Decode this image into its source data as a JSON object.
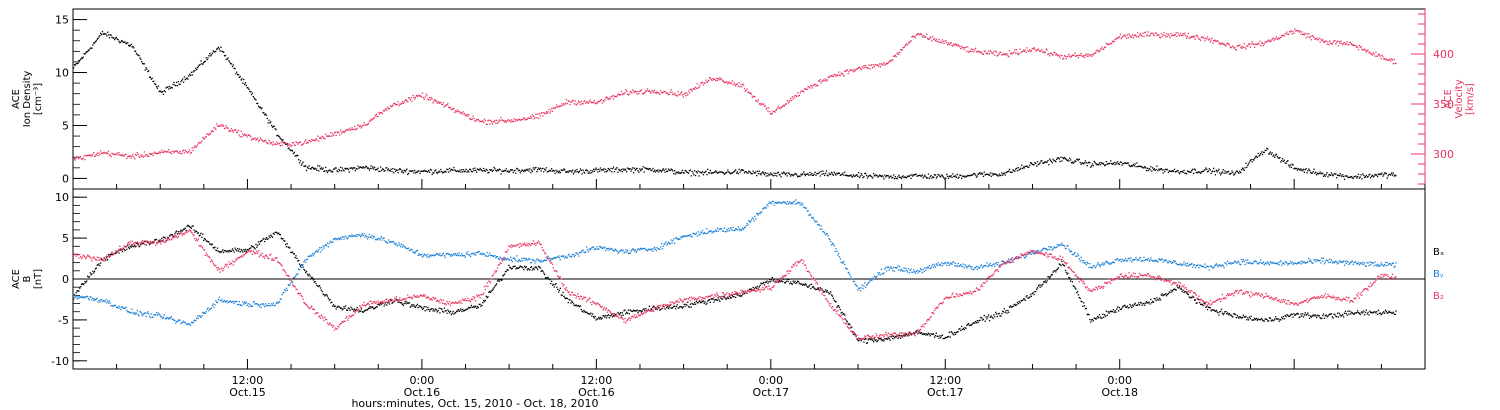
{
  "colors": {
    "black": "#000000",
    "pink": "#e8345f",
    "blue": "#1a7fd6"
  },
  "chart_data": [
    {
      "type": "scatter",
      "panel": "top",
      "ylabel_left": [
        "ACE",
        "Ion Density",
        "[cm⁻³]"
      ],
      "ylabel_right": [
        "ACE",
        "Velocity",
        "[km/s]"
      ],
      "xlim_hours": [
        0,
        93
      ],
      "ylim": [
        -1,
        16
      ],
      "yticks": [
        0,
        5,
        10,
        15
      ],
      "ylim_right": [
        265,
        445
      ],
      "yticks_right": [
        300,
        350,
        400
      ],
      "grid": false,
      "series": [
        {
          "axis": "left",
          "color": "#000000",
          "x": [
            0,
            2,
            4,
            6,
            8,
            10,
            12,
            14,
            16,
            18,
            20,
            22,
            24,
            26,
            28,
            30,
            32,
            34,
            36,
            38,
            40,
            42,
            44,
            46,
            48,
            50,
            52,
            54,
            56,
            58,
            60,
            62,
            64,
            66,
            68,
            70,
            72,
            74,
            76,
            78,
            80,
            82,
            84,
            86,
            88,
            90,
            91
          ],
          "y": [
            10.5,
            13.8,
            12.6,
            8.1,
            9.8,
            12.5,
            8.5,
            4.3,
            1.1,
            0.8,
            1.1,
            0.8,
            0.7,
            0.8,
            0.8,
            0.8,
            0.9,
            0.7,
            0.8,
            0.9,
            0.9,
            0.6,
            0.6,
            0.7,
            0.4,
            0.4,
            0.5,
            0.3,
            0.2,
            0.3,
            0.2,
            0.4,
            0.5,
            1.4,
            1.9,
            1.4,
            1.5,
            1.0,
            0.7,
            0.8,
            0.5,
            2.8,
            1.0,
            0.5,
            0.2,
            0.4,
            0.4
          ]
        },
        {
          "axis": "right",
          "color": "#e8345f",
          "x": [
            0,
            2,
            4,
            6,
            8,
            10,
            12,
            14,
            16,
            18,
            20,
            22,
            24,
            26,
            28,
            30,
            32,
            34,
            36,
            38,
            40,
            42,
            44,
            46,
            48,
            50,
            52,
            54,
            56,
            58,
            60,
            62,
            64,
            66,
            68,
            70,
            72,
            74,
            76,
            78,
            80,
            82,
            84,
            86,
            88,
            90,
            91
          ],
          "y": [
            295,
            302,
            298,
            302,
            303,
            330,
            318,
            310,
            312,
            321,
            330,
            350,
            359,
            346,
            333,
            334,
            338,
            353,
            352,
            362,
            364,
            360,
            377,
            369,
            341,
            362,
            378,
            386,
            391,
            420,
            412,
            403,
            400,
            406,
            398,
            399,
            418,
            420,
            420,
            416,
            407,
            412,
            424,
            413,
            410,
            397,
            392
          ]
        }
      ]
    },
    {
      "type": "scatter",
      "panel": "bottom",
      "ylabel_left": [
        "ACE",
        "B",
        "[nT]"
      ],
      "xlim_hours": [
        0,
        93
      ],
      "ylim": [
        -11,
        11
      ],
      "yticks": [
        -10,
        -5,
        0,
        5,
        10
      ],
      "zero_line": true,
      "grid": false,
      "legend": "right",
      "series": [
        {
          "name": "Bₓ",
          "color": "#000000",
          "x": [
            0,
            2,
            4,
            6,
            8,
            10,
            12,
            14,
            16,
            18,
            20,
            22,
            24,
            26,
            28,
            30,
            32,
            34,
            36,
            38,
            40,
            42,
            44,
            46,
            48,
            50,
            52,
            54,
            56,
            58,
            60,
            62,
            64,
            66,
            68,
            70,
            72,
            74,
            76,
            78,
            80,
            82,
            84,
            86,
            88,
            90,
            91
          ],
          "y": [
            -2,
            2.5,
            4.1,
            4.8,
            6.5,
            3.5,
            3.6,
            5.8,
            1.0,
            -3.3,
            -3.8,
            -2.5,
            -3.5,
            -4.0,
            -3.2,
            1.6,
            1.4,
            -2.5,
            -4.8,
            -4.0,
            -3.5,
            -3.2,
            -2.5,
            -1.8,
            0.0,
            -0.5,
            -1.5,
            -7.5,
            -7.2,
            -6.5,
            -7.0,
            -5.2,
            -4.0,
            -1.7,
            2.0,
            -5.0,
            -3.5,
            -2.8,
            -1.0,
            -3.5,
            -4.5,
            -5.0,
            -4.3,
            -4.5,
            -4.1,
            -4.0,
            -4.0
          ]
        },
        {
          "name": "Bᵧ",
          "color": "#1a7fd6",
          "x": [
            0,
            2,
            4,
            6,
            8,
            10,
            12,
            14,
            16,
            18,
            20,
            22,
            24,
            26,
            28,
            30,
            32,
            34,
            36,
            38,
            40,
            42,
            44,
            46,
            48,
            50,
            52,
            54,
            56,
            58,
            60,
            62,
            64,
            66,
            68,
            70,
            72,
            74,
            76,
            78,
            80,
            82,
            84,
            86,
            88,
            90,
            91
          ],
          "y": [
            -2,
            -2.5,
            -4.0,
            -4.5,
            -5.5,
            -2.5,
            -3.0,
            -3.0,
            2.5,
            5.0,
            5.5,
            4.5,
            3.0,
            3.0,
            3.2,
            2.5,
            2.3,
            2.9,
            3.9,
            3.4,
            3.8,
            5.3,
            6.0,
            6.2,
            9.5,
            9.4,
            5.0,
            -1.3,
            1.5,
            1.0,
            2.0,
            1.5,
            2.0,
            3.3,
            4.4,
            1.5,
            2.5,
            2.5,
            2.0,
            1.5,
            2.2,
            2.0,
            2.0,
            2.3,
            2.0,
            1.8,
            1.8
          ]
        },
        {
          "name": "B₂",
          "color": "#e8345f",
          "x": [
            0,
            2,
            4,
            6,
            8,
            10,
            12,
            14,
            16,
            18,
            20,
            22,
            24,
            26,
            28,
            30,
            32,
            34,
            36,
            38,
            40,
            42,
            44,
            46,
            48,
            50,
            52,
            54,
            56,
            58,
            60,
            62,
            64,
            66,
            68,
            70,
            72,
            74,
            76,
            78,
            80,
            82,
            84,
            86,
            88,
            90,
            91
          ],
          "y": [
            3,
            2.5,
            4.5,
            4.5,
            6.0,
            1.0,
            3.5,
            2.5,
            -3.0,
            -6.0,
            -3.0,
            -2.5,
            -2.0,
            -3.0,
            -2.0,
            4.0,
            4.5,
            -1.5,
            -3.0,
            -5.0,
            -3.5,
            -2.5,
            -2.0,
            -1.5,
            -1.0,
            2.5,
            -3.0,
            -7.2,
            -6.8,
            -6.5,
            -2.2,
            -1.5,
            2.0,
            3.5,
            2.5,
            -1.5,
            0.5,
            0.5,
            -0.5,
            -3.0,
            -1.5,
            -2.0,
            -3.0,
            -2.0,
            -2.5,
            0.5,
            0.2
          ]
        }
      ]
    }
  ],
  "x_axis": {
    "ticks": [
      {
        "hour": 12,
        "line1": "12:00",
        "line2": "Oct.15"
      },
      {
        "hour": 24,
        "line1": "0:00",
        "line2": "Oct.16"
      },
      {
        "hour": 36,
        "line1": "12:00",
        "line2": "Oct.16"
      },
      {
        "hour": 48,
        "line1": "0:00",
        "line2": "Oct.17"
      },
      {
        "hour": 60,
        "line1": "12:00",
        "line2": "Oct.17"
      },
      {
        "hour": 72,
        "line1": "0:00",
        "line2": "Oct.18"
      }
    ],
    "label": "hours:minutes, Oct. 15, 2010 - Oct. 18, 2010"
  }
}
